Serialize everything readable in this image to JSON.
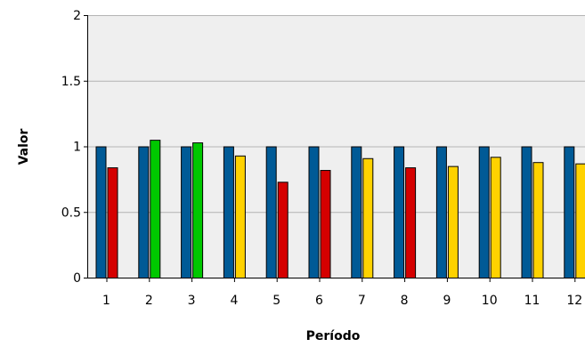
{
  "chart_data": {
    "type": "bar",
    "title": "",
    "xlabel": "Período",
    "ylabel": "Valor",
    "ylim": [
      0,
      2
    ],
    "yticks": [
      0,
      0.5,
      1,
      1.5,
      2
    ],
    "ytick_labels": [
      "0",
      "0.5",
      "1",
      "1.5",
      "2"
    ],
    "categories": [
      "1",
      "2",
      "3",
      "4",
      "5",
      "6",
      "7",
      "8",
      "9",
      "10",
      "11",
      "12"
    ],
    "grid": "horizontal",
    "legend": "none",
    "series": [
      {
        "values": [
          1,
          1,
          1,
          1,
          1,
          1,
          1,
          1,
          1,
          1,
          1,
          1
        ],
        "colors": [
          "#005a96",
          "#005a96",
          "#005a96",
          "#005a96",
          "#005a96",
          "#005a96",
          "#005a96",
          "#005a96",
          "#005a96",
          "#005a96",
          "#005a96",
          "#005a96"
        ]
      },
      {
        "values": [
          0.84,
          1.05,
          1.03,
          0.93,
          0.73,
          0.82,
          0.91,
          0.84,
          0.85,
          0.92,
          0.88,
          0.87
        ],
        "colors": [
          "#d50000",
          "#00c800",
          "#00c800",
          "#ffd200",
          "#d50000",
          "#d50000",
          "#ffd200",
          "#d50000",
          "#ffd200",
          "#ffd200",
          "#ffd200",
          "#ffd200"
        ]
      }
    ],
    "colors": {
      "plot_background": "#efefef",
      "gridline": "#b4b4b4",
      "axis": "#000000",
      "bar_outline": "#000000"
    }
  }
}
